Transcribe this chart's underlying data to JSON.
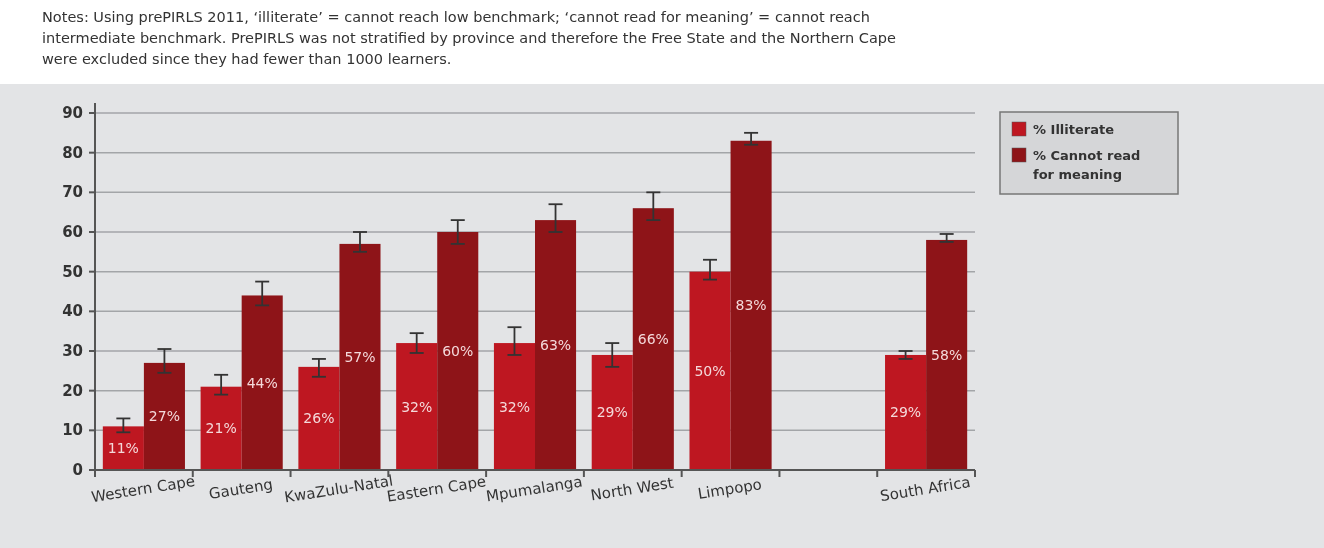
{
  "chart_data": {
    "type": "bar",
    "annotations": [
      "Notes: Using prePIRLS 2011, ‘illiterate’ = cannot reach low benchmark; ‘cannot read for meaning’ = cannot reach intermediate benchmark. PrePIRLS was not stratified by province and therefore the Free State and the Northern Cape were excluded since they had fewer than 1000 learners."
    ],
    "categories": [
      "Western Cape",
      "Gauteng",
      "KwaZulu-Natal",
      "Eastern Cape",
      "Mpumalanga",
      "North West",
      "Limpopo",
      null,
      "South Africa"
    ],
    "series": [
      {
        "name": "% Illiterate",
        "color": "#be1721",
        "values": [
          11,
          21,
          26,
          32,
          32,
          29,
          50,
          null,
          29
        ],
        "value_labels": [
          "11%",
          "21%",
          "26%",
          "32%",
          "32%",
          "29%",
          "50%",
          null,
          "29%"
        ],
        "errors": [
          [
            9.5,
            13
          ],
          [
            19,
            24
          ],
          [
            23.5,
            28
          ],
          [
            29.5,
            34.5
          ],
          [
            29,
            36
          ],
          [
            26,
            32
          ],
          [
            48,
            53
          ],
          null,
          [
            28,
            30
          ]
        ]
      },
      {
        "name": "% Cannot read for meaning",
        "color": "#8e1418",
        "values": [
          27,
          44,
          57,
          60,
          63,
          66,
          83,
          null,
          58
        ],
        "value_labels": [
          "27%",
          "44%",
          "57%",
          "60%",
          "63%",
          "66%",
          "83%",
          null,
          "58%"
        ],
        "errors": [
          [
            24.5,
            30.5
          ],
          [
            41.5,
            47.5
          ],
          [
            55,
            60
          ],
          [
            57,
            63
          ],
          [
            60,
            67
          ],
          [
            63,
            70
          ],
          [
            82,
            85
          ],
          null,
          [
            57.5,
            59.5
          ]
        ]
      }
    ],
    "ylim": [
      0,
      90
    ],
    "yticks": [
      0,
      10,
      20,
      30,
      40,
      50,
      60,
      70,
      80,
      90
    ],
    "grid": "y",
    "legend": "top right"
  }
}
